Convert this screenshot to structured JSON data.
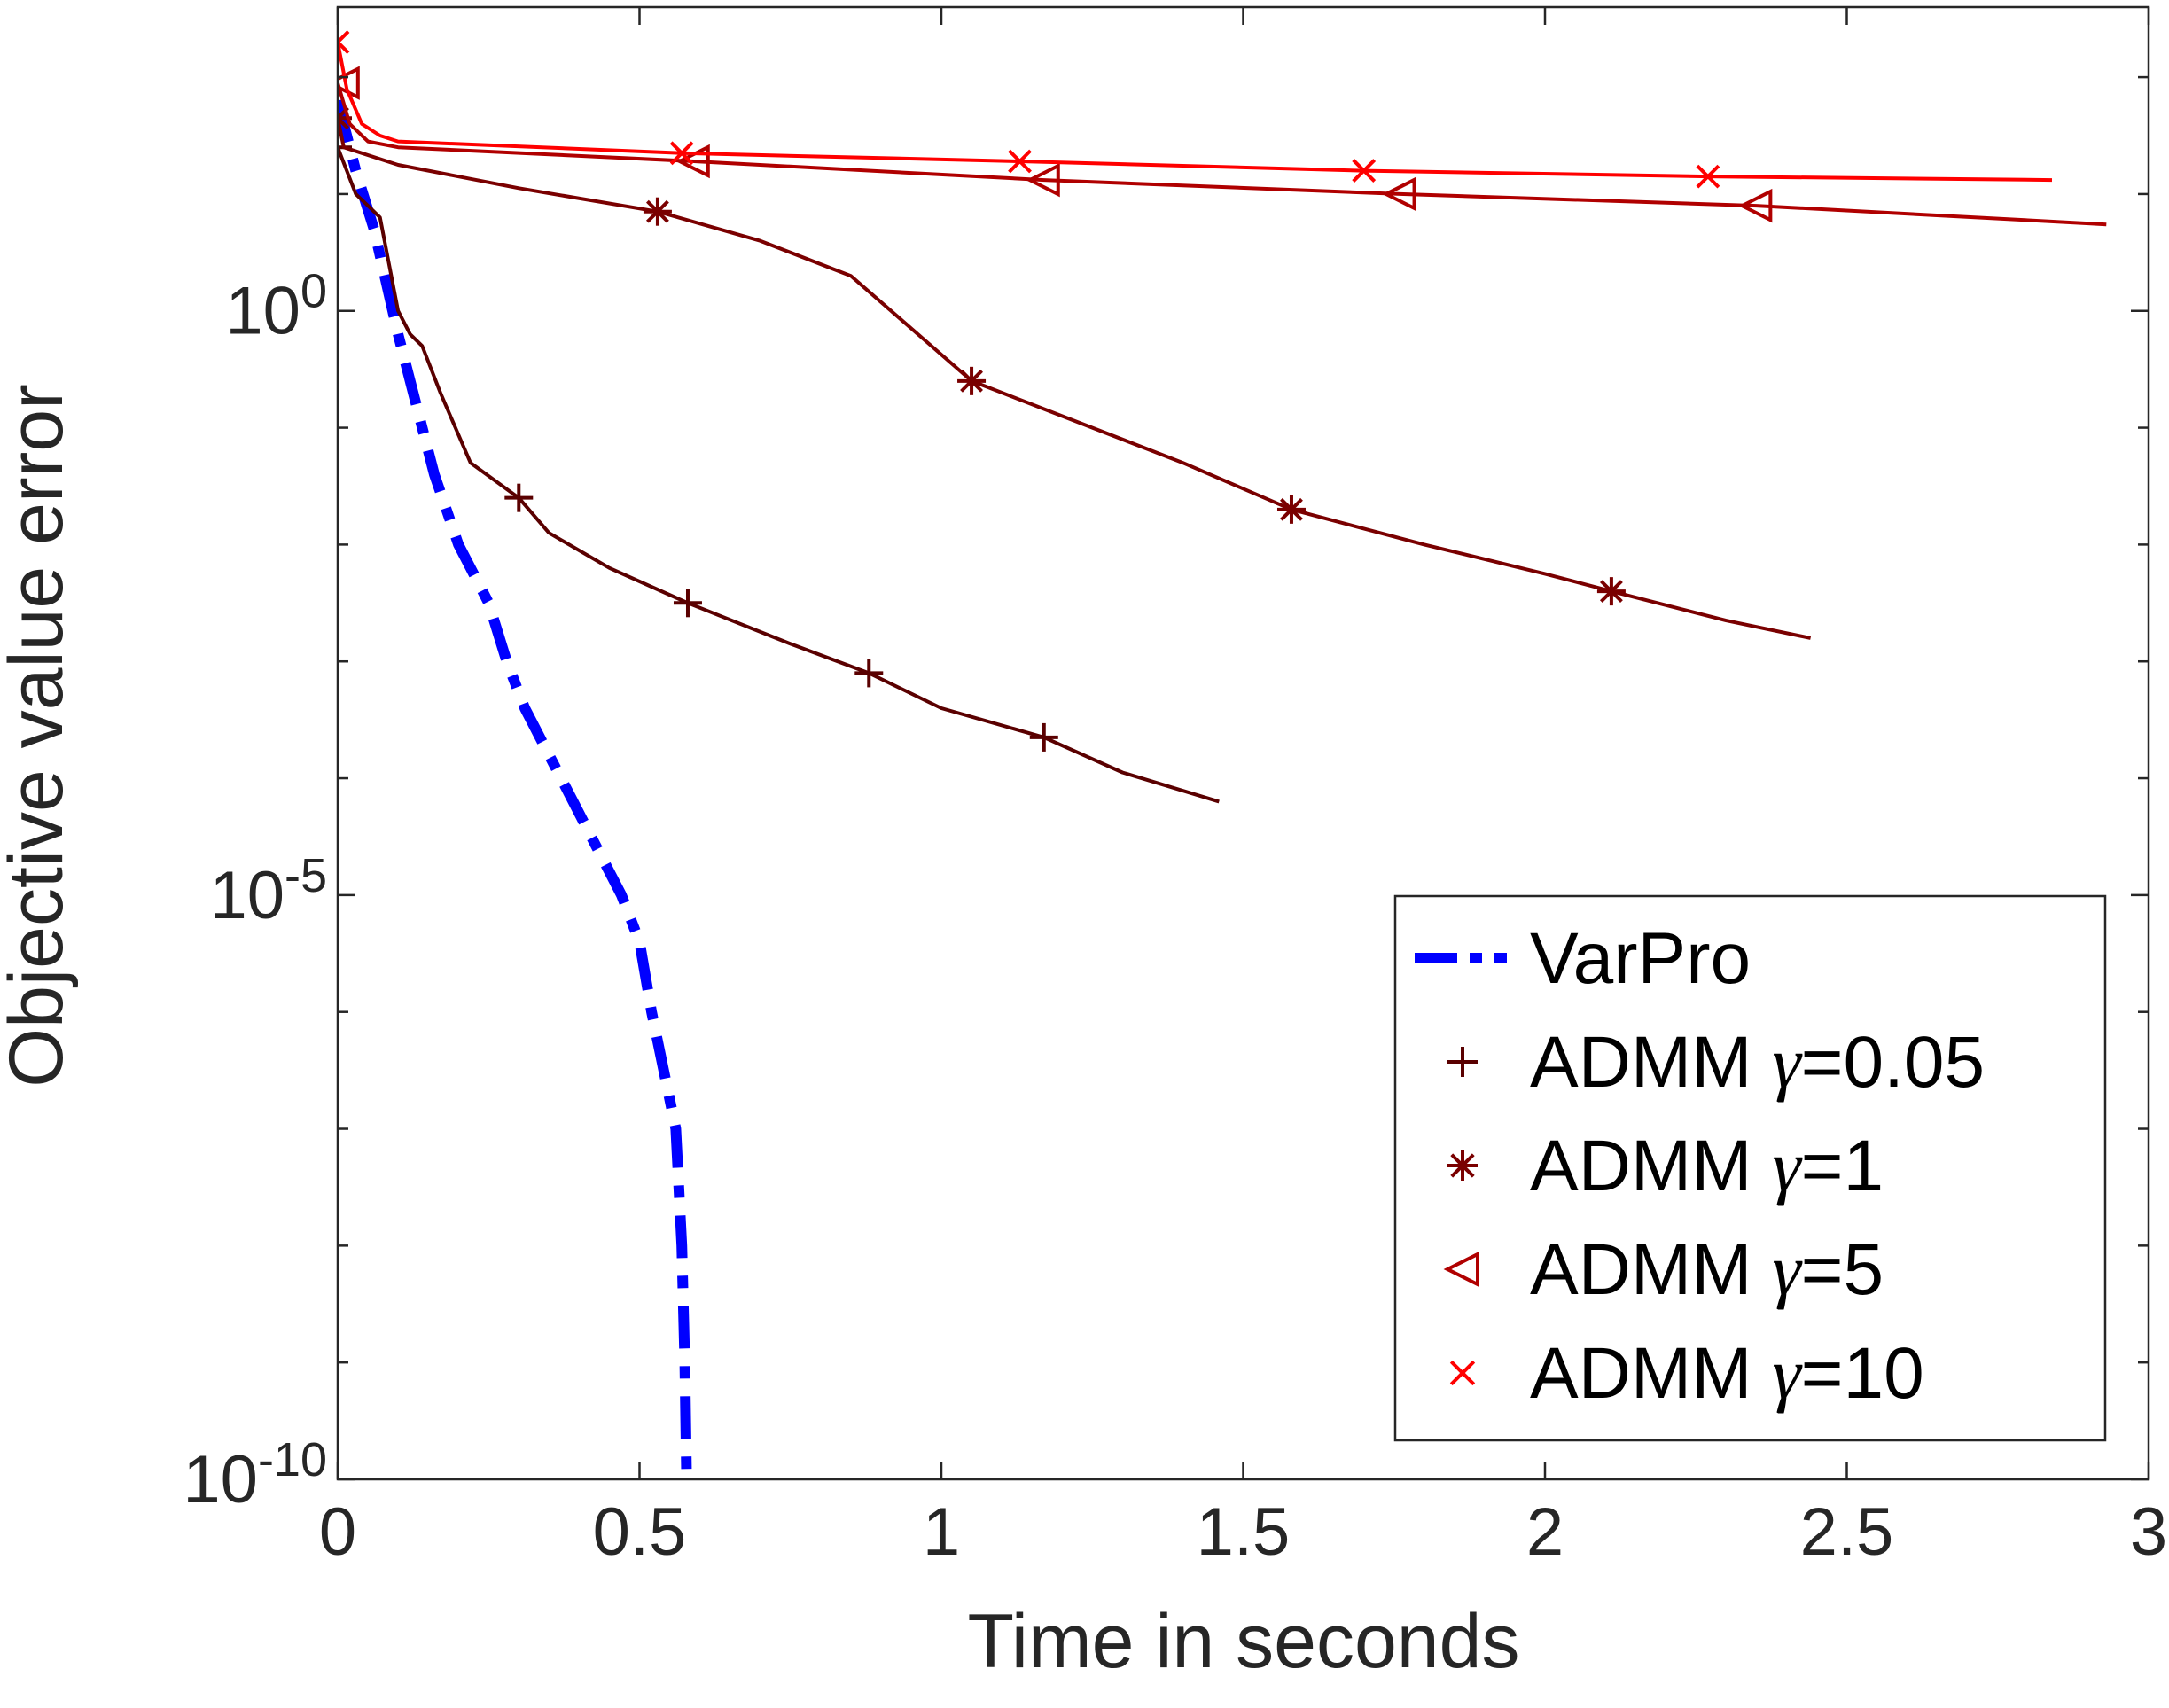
{
  "chart_data": {
    "type": "line",
    "xlabel": "Time in seconds",
    "ylabel": "Objective value error",
    "xlim": [
      0,
      3
    ],
    "ylim_log10": [
      -10,
      2.6
    ],
    "yscale": "log",
    "grid": false,
    "legend_position": "bottom-right",
    "x_ticks": [
      {
        "value": 0,
        "label": "0"
      },
      {
        "value": 0.5,
        "label": "0.5"
      },
      {
        "value": 1,
        "label": "1"
      },
      {
        "value": 1.5,
        "label": "1.5"
      },
      {
        "value": 2,
        "label": "2"
      },
      {
        "value": 2.5,
        "label": "2.5"
      },
      {
        "value": 3,
        "label": "3"
      }
    ],
    "y_ticks": [
      {
        "exp": 0,
        "base": "10",
        "sup": "0"
      },
      {
        "exp": -5,
        "base": "10",
        "sup": "-5"
      },
      {
        "exp": -10,
        "base": "10",
        "sup": "-10"
      }
    ],
    "series": [
      {
        "name": "VarPro",
        "legend_label": "VarPro",
        "legend_gamma": "",
        "color": "#0000ff",
        "style": "dashdot",
        "marker": "none",
        "points": [
          [
            0,
            1.8
          ],
          [
            0.03,
            1.2
          ],
          [
            0.06,
            0.7
          ],
          [
            0.1,
            -0.2
          ],
          [
            0.13,
            -0.8
          ],
          [
            0.16,
            -1.4
          ],
          [
            0.2,
            -2.0
          ],
          [
            0.25,
            -2.5
          ],
          [
            0.28,
            -3.0
          ],
          [
            0.31,
            -3.4
          ],
          [
            0.35,
            -3.8
          ],
          [
            0.37,
            -4.0
          ],
          [
            0.39,
            -4.2
          ],
          [
            0.42,
            -4.5
          ],
          [
            0.47,
            -5.0
          ],
          [
            0.5,
            -5.4
          ],
          [
            0.52,
            -6.0
          ],
          [
            0.56,
            -7.0
          ],
          [
            0.57,
            -8.0
          ],
          [
            0.575,
            -9.0
          ],
          [
            0.578,
            -10.0
          ]
        ],
        "markers": []
      },
      {
        "name": "ADMM γ=0.05",
        "legend_label": "ADMM ",
        "legend_gamma": "γ=0.05",
        "color": "#5a0000",
        "style": "solid",
        "marker": "plus",
        "points": [
          [
            0,
            1.4
          ],
          [
            0.03,
            1.0
          ],
          [
            0.05,
            0.9
          ],
          [
            0.07,
            0.8
          ],
          [
            0.1,
            0.0
          ],
          [
            0.12,
            -0.2
          ],
          [
            0.14,
            -0.3
          ],
          [
            0.17,
            -0.7
          ],
          [
            0.22,
            -1.3
          ],
          [
            0.3,
            -1.6
          ],
          [
            0.35,
            -1.9
          ],
          [
            0.45,
            -2.2
          ],
          [
            0.58,
            -2.5
          ],
          [
            0.75,
            -2.85
          ],
          [
            0.88,
            -3.1
          ],
          [
            1.0,
            -3.4
          ],
          [
            1.17,
            -3.65
          ],
          [
            1.3,
            -3.95
          ],
          [
            1.46,
            -4.2
          ]
        ],
        "markers": [
          [
            0,
            1.4
          ],
          [
            0.3,
            -1.6
          ],
          [
            0.58,
            -2.5
          ],
          [
            0.88,
            -3.1
          ],
          [
            1.17,
            -3.65
          ]
        ]
      },
      {
        "name": "ADMM γ=1",
        "legend_label": "ADMM ",
        "legend_gamma": "γ=1",
        "color": "#7a0000",
        "style": "solid",
        "marker": "asterisk",
        "points": [
          [
            0,
            1.65
          ],
          [
            0.01,
            1.4
          ],
          [
            0.1,
            1.25
          ],
          [
            0.3,
            1.05
          ],
          [
            0.53,
            0.85
          ],
          [
            0.7,
            0.6
          ],
          [
            0.85,
            0.3
          ],
          [
            1.05,
            -0.6
          ],
          [
            1.2,
            -0.9
          ],
          [
            1.4,
            -1.3
          ],
          [
            1.58,
            -1.7
          ],
          [
            1.8,
            -2.0
          ],
          [
            2.0,
            -2.25
          ],
          [
            2.11,
            -2.4
          ],
          [
            2.3,
            -2.65
          ],
          [
            2.44,
            -2.8
          ]
        ],
        "markers": [
          [
            0,
            1.65
          ],
          [
            0.53,
            0.85
          ],
          [
            1.05,
            -0.6
          ],
          [
            1.58,
            -1.7
          ],
          [
            2.11,
            -2.4
          ]
        ]
      },
      {
        "name": "ADMM γ=5",
        "legend_label": "ADMM ",
        "legend_gamma": "γ=5",
        "color": "#b00000",
        "style": "solid",
        "marker": "triangle-left",
        "points": [
          [
            0,
            1.95
          ],
          [
            0.02,
            1.6
          ],
          [
            0.05,
            1.45
          ],
          [
            0.1,
            1.4
          ],
          [
            0.59,
            1.28
          ],
          [
            1.17,
            1.12
          ],
          [
            1.76,
            1.0
          ],
          [
            2.35,
            0.9
          ],
          [
            2.93,
            0.74
          ]
        ],
        "markers": [
          [
            0.01,
            1.95
          ],
          [
            0.59,
            1.28
          ],
          [
            1.17,
            1.12
          ],
          [
            1.76,
            1.0
          ],
          [
            2.35,
            0.9
          ]
        ]
      },
      {
        "name": "ADMM γ=10",
        "legend_label": "ADMM ",
        "legend_gamma": "γ=10",
        "color": "#ff0000",
        "style": "solid",
        "marker": "x",
        "points": [
          [
            0,
            2.3
          ],
          [
            0.015,
            1.9
          ],
          [
            0.04,
            1.6
          ],
          [
            0.07,
            1.5
          ],
          [
            0.1,
            1.45
          ],
          [
            0.57,
            1.35
          ],
          [
            1.13,
            1.28
          ],
          [
            1.7,
            1.2
          ],
          [
            2.27,
            1.15
          ],
          [
            2.84,
            1.12
          ]
        ],
        "markers": [
          [
            0,
            2.3
          ],
          [
            0.57,
            1.35
          ],
          [
            1.13,
            1.28
          ],
          [
            1.7,
            1.2
          ],
          [
            2.27,
            1.15
          ]
        ]
      }
    ]
  }
}
